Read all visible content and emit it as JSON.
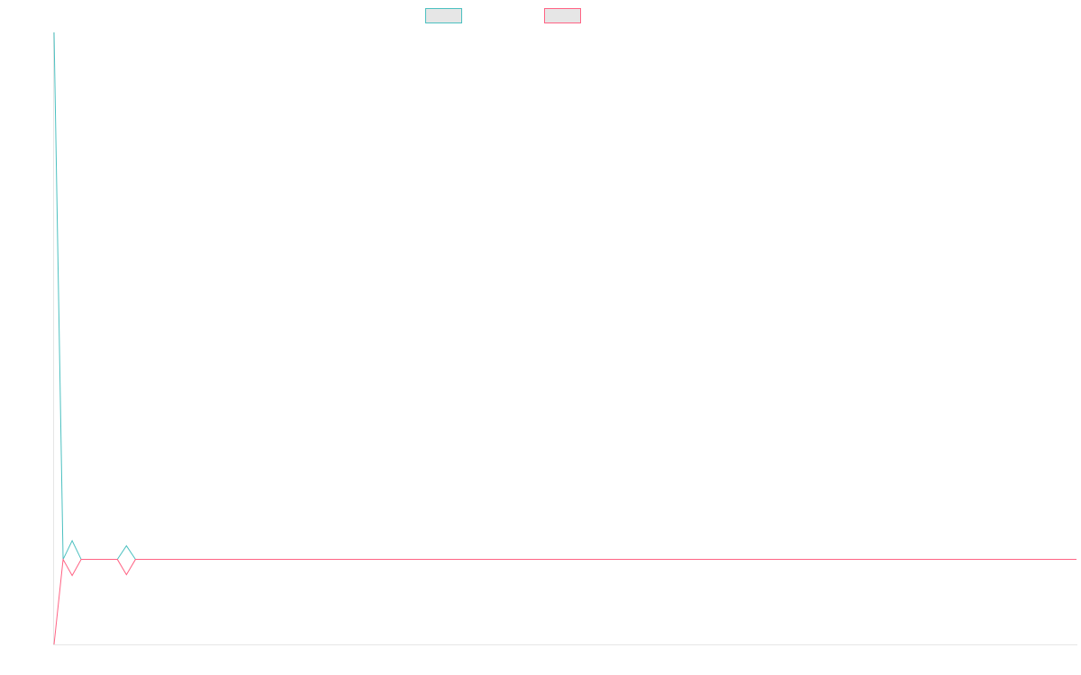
{
  "chart_data": {
    "type": "line",
    "title": "",
    "xlabel": "",
    "ylabel": "",
    "grid": false,
    "legend_position": "top-center",
    "x": [
      0,
      1,
      2,
      3,
      4,
      5,
      6,
      7,
      8,
      9,
      10,
      11,
      12,
      13,
      14,
      15,
      16,
      17,
      18,
      19,
      20,
      21,
      22,
      23,
      24,
      25,
      26,
      27,
      28,
      29,
      30,
      31,
      32,
      33,
      34,
      35,
      36,
      37,
      38,
      39,
      40,
      41,
      42,
      43,
      44,
      45,
      46,
      47,
      48,
      49,
      50,
      51,
      52,
      53,
      54,
      55,
      56,
      57,
      58,
      59,
      60,
      61,
      62,
      63,
      64,
      65,
      66,
      67,
      68,
      69,
      70,
      71,
      72,
      73,
      74,
      75,
      76,
      77,
      78,
      79,
      80,
      81,
      82,
      83,
      84,
      85,
      86,
      87,
      88,
      89,
      90,
      91,
      92,
      93,
      94,
      95,
      96,
      97,
      98,
      99,
      100,
      101,
      102,
      103,
      104,
      105,
      106,
      107,
      108,
      109,
      110,
      111,
      112,
      113
    ],
    "series": [
      {
        "color": "#4bc0c0",
        "values": [
          620,
          0,
          22,
          0,
          0,
          0,
          0,
          0,
          16,
          0,
          0,
          0,
          0,
          0,
          0,
          0,
          0,
          0,
          0,
          0,
          0,
          0,
          0,
          0,
          0,
          0,
          0,
          0,
          0,
          0,
          0,
          0,
          0,
          0,
          0,
          0,
          0,
          0,
          0,
          0,
          0,
          0,
          0,
          0,
          0,
          0,
          0,
          0,
          0,
          0,
          0,
          0,
          0,
          0,
          0,
          0,
          0,
          0,
          0,
          0,
          0,
          0,
          0,
          0,
          0,
          0,
          0,
          0,
          0,
          0,
          0,
          0,
          0,
          0,
          0,
          0,
          0,
          0,
          0,
          0,
          0,
          0,
          0,
          0,
          0,
          0,
          0,
          0,
          0,
          0,
          0,
          0,
          0,
          0,
          0,
          0,
          0,
          0,
          0,
          0,
          0,
          0,
          0,
          0,
          0,
          0,
          0,
          0,
          0,
          0,
          0,
          0,
          0,
          0
        ]
      },
      {
        "color": "#ff6384",
        "values": [
          -100,
          0,
          -19,
          0,
          0,
          0,
          0,
          0,
          -18,
          0,
          0,
          0,
          0,
          0,
          0,
          0,
          0,
          0,
          0,
          0,
          0,
          0,
          0,
          0,
          0,
          0,
          0,
          0,
          0,
          0,
          0,
          0,
          0,
          0,
          0,
          0,
          0,
          0,
          0,
          0,
          0,
          0,
          0,
          0,
          0,
          0,
          0,
          0,
          0,
          0,
          0,
          0,
          0,
          0,
          0,
          0,
          0,
          0,
          0,
          0,
          0,
          0,
          0,
          0,
          0,
          0,
          0,
          0,
          0,
          0,
          0,
          0,
          0,
          0,
          0,
          0,
          0,
          0,
          0,
          0,
          0,
          0,
          0,
          0,
          0,
          0,
          0,
          0,
          0,
          0,
          0,
          0,
          0,
          0,
          0,
          0,
          0,
          0,
          0,
          0,
          0,
          0,
          0,
          0,
          0,
          0,
          0,
          0,
          0,
          0,
          0,
          0,
          0,
          0
        ]
      }
    ],
    "ylim": [
      -100,
      620
    ],
    "xlim": [
      0,
      113
    ]
  },
  "legend": {
    "items": [
      {
        "label": "",
        "border_color": "#4bc0c0",
        "fill_color": "#e6e6e6"
      },
      {
        "label": "",
        "border_color": "#ff6384",
        "fill_color": "#e6e6e6"
      }
    ]
  }
}
